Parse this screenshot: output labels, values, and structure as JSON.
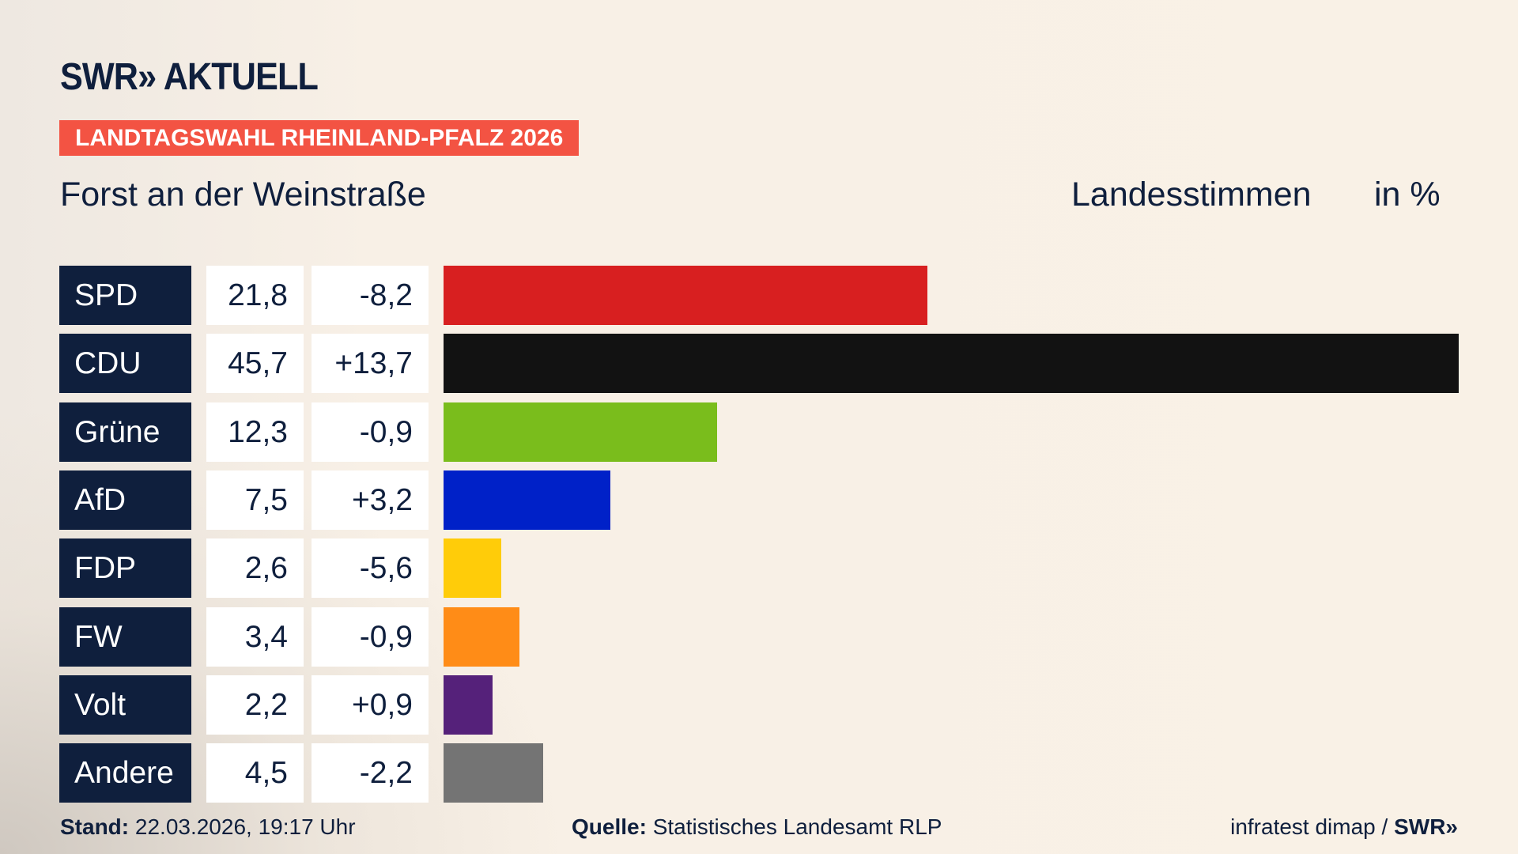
{
  "header": {
    "logo": "SWR» AKTUELL",
    "banner": "LANDTAGSWAHL RHEINLAND-PFALZ 2026",
    "location": "Forst an der Weinstraße",
    "measure": "Landesstimmen",
    "unit": "in %"
  },
  "chart_data": {
    "type": "bar",
    "orientation": "horizontal",
    "categories": [
      "SPD",
      "CDU",
      "Grüne",
      "AfD",
      "FDP",
      "FW",
      "Volt",
      "Andere"
    ],
    "values": [
      21.8,
      45.7,
      12.3,
      7.5,
      2.6,
      3.4,
      2.2,
      4.5
    ],
    "value_labels": [
      "21,8",
      "45,7",
      "12,3",
      "7,5",
      "2,6",
      "3,4",
      "2,2",
      "4,5"
    ],
    "diff_labels": [
      "-8,2",
      "+13,7",
      "-0,9",
      "+3,2",
      "-5,6",
      "-0,9",
      "+0,9",
      "-2,2"
    ],
    "diffs": [
      -8.2,
      13.7,
      -0.9,
      3.2,
      -5.6,
      -0.9,
      0.9,
      -2.2
    ],
    "colors": [
      "#d81f20",
      "#121212",
      "#7abd1c",
      "#0021c8",
      "#ffcc09",
      "#ff8c17",
      "#55217a",
      "#747474"
    ],
    "grid": false
  },
  "footer": {
    "stand_label": "Stand:",
    "stand": "22.03.2026, 19:17 Uhr",
    "source_label": "Quelle:",
    "source": "Statistisches Landesamt RLP",
    "credit": "infratest dimap / ",
    "credit_logo": "SWR»"
  }
}
